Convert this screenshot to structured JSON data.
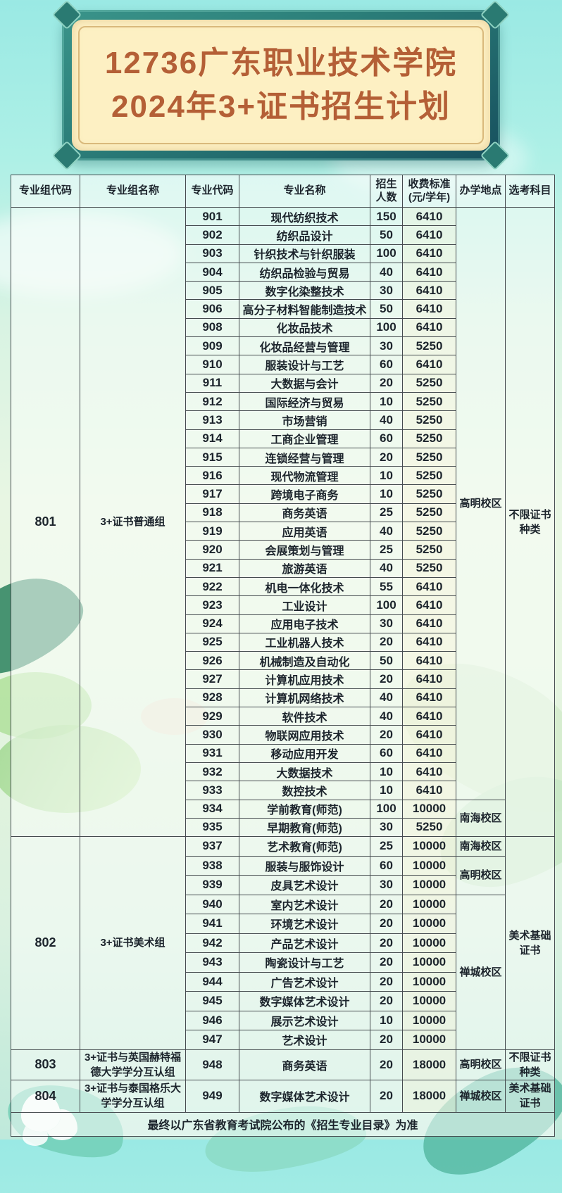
{
  "plaque": {
    "line1": "12736广东职业技术学院",
    "line2": "2024年3+证书招生计划"
  },
  "table": {
    "columns": [
      "专业组代码",
      "专业组名称",
      "专业代码",
      "专业名称",
      "招生\n人数",
      "收费标准\n(元/学年)",
      "办学地点",
      "选考科目"
    ],
    "groups": [
      {
        "code": "801",
        "name": "3+证书普通组",
        "exam_subjects": "不限证书\n种类",
        "majors": [
          {
            "code": "901",
            "name": "现代纺织技术",
            "enrollment": "150",
            "fee": "6410",
            "campus": "高明校区"
          },
          {
            "code": "902",
            "name": "纺织品设计",
            "enrollment": "50",
            "fee": "6410",
            "campus": "高明校区"
          },
          {
            "code": "903",
            "name": "针织技术与针织服装",
            "enrollment": "100",
            "fee": "6410",
            "campus": "高明校区"
          },
          {
            "code": "904",
            "name": "纺织品检验与贸易",
            "enrollment": "40",
            "fee": "6410",
            "campus": "高明校区"
          },
          {
            "code": "905",
            "name": "数字化染整技术",
            "enrollment": "30",
            "fee": "6410",
            "campus": "高明校区"
          },
          {
            "code": "906",
            "name": "高分子材料智能制造技术",
            "enrollment": "50",
            "fee": "6410",
            "campus": "高明校区"
          },
          {
            "code": "908",
            "name": "化妆品技术",
            "enrollment": "100",
            "fee": "6410",
            "campus": "高明校区"
          },
          {
            "code": "909",
            "name": "化妆品经营与管理",
            "enrollment": "30",
            "fee": "5250",
            "campus": "高明校区"
          },
          {
            "code": "910",
            "name": "服装设计与工艺",
            "enrollment": "60",
            "fee": "6410",
            "campus": "高明校区"
          },
          {
            "code": "911",
            "name": "大数据与会计",
            "enrollment": "20",
            "fee": "5250",
            "campus": "高明校区"
          },
          {
            "code": "912",
            "name": "国际经济与贸易",
            "enrollment": "10",
            "fee": "5250",
            "campus": "高明校区"
          },
          {
            "code": "913",
            "name": "市场营销",
            "enrollment": "40",
            "fee": "5250",
            "campus": "高明校区"
          },
          {
            "code": "914",
            "name": "工商企业管理",
            "enrollment": "60",
            "fee": "5250",
            "campus": "高明校区"
          },
          {
            "code": "915",
            "name": "连锁经营与管理",
            "enrollment": "20",
            "fee": "5250",
            "campus": "高明校区"
          },
          {
            "code": "916",
            "name": "现代物流管理",
            "enrollment": "10",
            "fee": "5250",
            "campus": "高明校区"
          },
          {
            "code": "917",
            "name": "跨境电子商务",
            "enrollment": "10",
            "fee": "5250",
            "campus": "高明校区"
          },
          {
            "code": "918",
            "name": "商务英语",
            "enrollment": "25",
            "fee": "5250",
            "campus": "高明校区"
          },
          {
            "code": "919",
            "name": "应用英语",
            "enrollment": "40",
            "fee": "5250",
            "campus": "高明校区"
          },
          {
            "code": "920",
            "name": "会展策划与管理",
            "enrollment": "25",
            "fee": "5250",
            "campus": "高明校区"
          },
          {
            "code": "921",
            "name": "旅游英语",
            "enrollment": "40",
            "fee": "5250",
            "campus": "高明校区"
          },
          {
            "code": "922",
            "name": "机电一体化技术",
            "enrollment": "55",
            "fee": "6410",
            "campus": "高明校区"
          },
          {
            "code": "923",
            "name": "工业设计",
            "enrollment": "100",
            "fee": "6410",
            "campus": "高明校区"
          },
          {
            "code": "924",
            "name": "应用电子技术",
            "enrollment": "30",
            "fee": "6410",
            "campus": "高明校区"
          },
          {
            "code": "925",
            "name": "工业机器人技术",
            "enrollment": "20",
            "fee": "6410",
            "campus": "高明校区"
          },
          {
            "code": "926",
            "name": "机械制造及自动化",
            "enrollment": "50",
            "fee": "6410",
            "campus": "高明校区"
          },
          {
            "code": "927",
            "name": "计算机应用技术",
            "enrollment": "20",
            "fee": "6410",
            "campus": "高明校区"
          },
          {
            "code": "928",
            "name": "计算机网络技术",
            "enrollment": "40",
            "fee": "6410",
            "campus": "高明校区"
          },
          {
            "code": "929",
            "name": "软件技术",
            "enrollment": "40",
            "fee": "6410",
            "campus": "高明校区"
          },
          {
            "code": "930",
            "name": "物联网应用技术",
            "enrollment": "20",
            "fee": "6410",
            "campus": "高明校区"
          },
          {
            "code": "931",
            "name": "移动应用开发",
            "enrollment": "60",
            "fee": "6410",
            "campus": "高明校区"
          },
          {
            "code": "932",
            "name": "大数据技术",
            "enrollment": "10",
            "fee": "6410",
            "campus": "高明校区"
          },
          {
            "code": "933",
            "name": "数控技术",
            "enrollment": "10",
            "fee": "6410",
            "campus": "高明校区"
          },
          {
            "code": "934",
            "name": "学前教育(师范)",
            "enrollment": "100",
            "fee": "10000",
            "campus": "南海校区"
          },
          {
            "code": "935",
            "name": "早期教育(师范)",
            "enrollment": "30",
            "fee": "5250",
            "campus": "南海校区"
          }
        ]
      },
      {
        "code": "802",
        "name": "3+证书美术组",
        "exam_subjects": "美术基础\n证书",
        "majors": [
          {
            "code": "937",
            "name": "艺术教育(师范)",
            "enrollment": "25",
            "fee": "10000",
            "campus": "南海校区"
          },
          {
            "code": "938",
            "name": "服装与服饰设计",
            "enrollment": "60",
            "fee": "10000",
            "campus": "高明校区"
          },
          {
            "code": "939",
            "name": "皮具艺术设计",
            "enrollment": "30",
            "fee": "10000",
            "campus": "高明校区"
          },
          {
            "code": "940",
            "name": "室内艺术设计",
            "enrollment": "20",
            "fee": "10000",
            "campus": "禅城校区"
          },
          {
            "code": "941",
            "name": "环境艺术设计",
            "enrollment": "20",
            "fee": "10000",
            "campus": "禅城校区"
          },
          {
            "code": "942",
            "name": "产品艺术设计",
            "enrollment": "20",
            "fee": "10000",
            "campus": "禅城校区"
          },
          {
            "code": "943",
            "name": "陶瓷设计与工艺",
            "enrollment": "20",
            "fee": "10000",
            "campus": "禅城校区"
          },
          {
            "code": "944",
            "name": "广告艺术设计",
            "enrollment": "20",
            "fee": "10000",
            "campus": "禅城校区"
          },
          {
            "code": "945",
            "name": "数字媒体艺术设计",
            "enrollment": "20",
            "fee": "10000",
            "campus": "禅城校区"
          },
          {
            "code": "946",
            "name": "展示艺术设计",
            "enrollment": "10",
            "fee": "10000",
            "campus": "禅城校区"
          },
          {
            "code": "947",
            "name": "艺术设计",
            "enrollment": "20",
            "fee": "10000",
            "campus": "禅城校区"
          }
        ]
      },
      {
        "code": "803",
        "name": "3+证书与英国赫特福德大学学分互认组",
        "exam_subjects": "不限证书\n种类",
        "majors": [
          {
            "code": "948",
            "name": "商务英语",
            "enrollment": "20",
            "fee": "18000",
            "campus": "高明校区"
          }
        ]
      },
      {
        "code": "804",
        "name": "3+证书与泰国格乐大学学分互认组",
        "exam_subjects": "美术基础\n证书",
        "majors": [
          {
            "code": "949",
            "name": "数字媒体艺术设计",
            "enrollment": "20",
            "fee": "18000",
            "campus": "禅城校区"
          }
        ]
      }
    ]
  },
  "footer": {
    "note": "最终以广东省教育考试院公布的《招生专业目录》为准"
  },
  "colors": {
    "plaque_border_teal": "#2b7e79",
    "plaque_background_cream": "#fdf0c3",
    "plaque_trim_gold": "#d9b97c",
    "title_text": "#b45f36",
    "table_border": "#454b4f",
    "body_text": "#1c242c"
  }
}
